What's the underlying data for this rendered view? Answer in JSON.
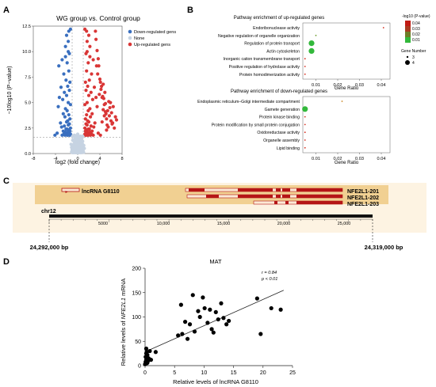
{
  "panels": {
    "A": "A",
    "B": "B",
    "C": "C",
    "D": "D"
  },
  "colors": {
    "down": "#3a6fbf",
    "none": "#c6d3e2",
    "up": "#d93636",
    "gene_bar": "#b11414",
    "high_pval": "#d42e1e",
    "low_pval": "#32b83b",
    "track_bg": "#f6e6c4",
    "band": "#efc98d"
  },
  "volcano": {
    "title": "WG group vs. Control group",
    "xlabel": "log2 (fold change)",
    "ylabel": "−10log10 (P−value)",
    "legend": [
      "Down-regulated gens",
      "None",
      "Up-regulated gens"
    ]
  },
  "enrichment": {
    "up_title": "Pathway enrichment of up-regulated genes",
    "down_title": "Pathway enrichment of down-regulated genes",
    "xlabel": "Gene Ratio",
    "pval_title": "-log10 (P-value)",
    "pval_ticks": [
      "0.04",
      "0.03",
      "0.02",
      "0.01"
    ],
    "size_title": "Gene Number",
    "size_ticks": [
      "3",
      "4"
    ]
  },
  "genome": {
    "lnc_label": "lncRNA G8110",
    "transcripts": [
      "NFE2L1-201",
      "NFE2L1-202",
      "NFE2L1-203"
    ],
    "chrom": "chr12",
    "ticks": [
      "5000",
      "10,000",
      "15,000",
      "20,000",
      "25,000"
    ],
    "start": "24,292,000 bp",
    "end": "24,319,000 bp"
  },
  "chart_data": [
    {
      "type": "scatter",
      "panel": "A",
      "title": "WG group vs. Control group",
      "xlabel": "log2 (fold change)",
      "ylabel": "−10log10 (P−value)",
      "xlim": [
        -8,
        8
      ],
      "ylim": [
        0,
        12.5
      ],
      "xticks": [
        -8,
        -4,
        0,
        4,
        8
      ],
      "yticks": [
        0.0,
        2.5,
        5.0,
        7.5,
        10.0,
        12.5
      ],
      "legend": "top-right",
      "series": [
        {
          "name": "Down-regulated gens",
          "x": [
            -1.3,
            -1.7,
            -2.2,
            -1.5,
            -2.8,
            -3.4,
            -1.9,
            -2.5,
            -1.6,
            -2.1,
            -3.0,
            -1.4,
            -1.8,
            -2.4,
            -2.0,
            -1.5,
            -2.7,
            -3.5,
            -1.7,
            -2.2,
            -1.3,
            -1.9,
            -2.6,
            -1.6,
            -2.3,
            -1.4,
            -1.8,
            -3.1,
            -2.0,
            -1.5,
            -2.4,
            -1.7,
            -2.9,
            -1.3,
            -2.1,
            -1.6,
            -1.9,
            -2.6,
            -1.4,
            -2.2,
            -1.8,
            -3.7,
            -1.5,
            -2.0,
            -1.7,
            -2.5,
            -1.3,
            -1.6,
            -2.3,
            -1.9,
            -4.1,
            -1.4,
            -2.8,
            -1.8,
            -1.5,
            -2.2,
            -1.7,
            -3.3,
            -2.0,
            -1.6
          ],
          "y": [
            12.2,
            11.0,
            10.5,
            9.8,
            9.2,
            8.6,
            8.9,
            7.8,
            8.1,
            7.2,
            6.5,
            7.0,
            6.6,
            6.0,
            5.7,
            6.2,
            5.3,
            4.6,
            5.0,
            4.4,
            4.8,
            4.2,
            3.9,
            3.8,
            3.6,
            3.4,
            3.2,
            3.0,
            3.1,
            2.9,
            2.7,
            2.8,
            2.6,
            2.5,
            2.4,
            2.3,
            2.4,
            2.2,
            2.2,
            2.1,
            2.1,
            2.0,
            2.0,
            2.0,
            1.9,
            1.9,
            1.9,
            1.9,
            1.8,
            1.8,
            1.8,
            1.8,
            1.8,
            1.8,
            1.8,
            9.5,
            10.0,
            5.5,
            11.6,
            12.0
          ]
        },
        {
          "name": "Up-regulated gens",
          "x": [
            1.3,
            1.7,
            2.2,
            1.5,
            2.8,
            3.4,
            1.9,
            2.5,
            1.6,
            2.1,
            3.0,
            1.4,
            1.8,
            2.4,
            2.0,
            1.5,
            2.7,
            3.5,
            1.7,
            2.2,
            1.3,
            1.9,
            2.6,
            1.6,
            2.3,
            1.4,
            1.8,
            3.1,
            2.0,
            1.5,
            2.4,
            1.7,
            2.9,
            1.3,
            2.1,
            1.6,
            1.9,
            2.6,
            1.4,
            2.2,
            1.8,
            3.7,
            1.5,
            2.0,
            1.7,
            2.5,
            1.3,
            1.6,
            2.3,
            1.9,
            4.1,
            1.4,
            2.8,
            1.8,
            1.5,
            2.2,
            1.7,
            3.3,
            2.0,
            1.6,
            4.5,
            5.0,
            5.4,
            4.2,
            4.8,
            5.8,
            3.9,
            4.6,
            5.2,
            4.0,
            5.6,
            6.1,
            4.4,
            3.6,
            4.9,
            5.3,
            6.4,
            3.8,
            4.7,
            5.1,
            6.8,
            4.3,
            5.5,
            3.7,
            6.0,
            4.1,
            5.9,
            7.0,
            4.6,
            5.2,
            3.5,
            6.2,
            4.8,
            5.7,
            3.3,
            6.6,
            4.4,
            5.0,
            3.2,
            6.3
          ],
          "y": [
            12.2,
            11.0,
            10.5,
            9.8,
            9.2,
            8.6,
            8.9,
            7.8,
            8.1,
            7.2,
            6.5,
            7.0,
            6.6,
            6.0,
            5.7,
            6.2,
            5.3,
            4.6,
            5.0,
            4.4,
            4.8,
            4.2,
            3.9,
            3.8,
            3.6,
            3.4,
            3.2,
            3.0,
            3.1,
            2.9,
            2.7,
            2.8,
            2.6,
            2.5,
            2.4,
            2.3,
            2.4,
            2.2,
            2.2,
            2.1,
            2.1,
            2.0,
            2.0,
            2.0,
            1.9,
            1.9,
            1.9,
            1.9,
            1.8,
            1.8,
            1.8,
            1.8,
            1.8,
            1.8,
            1.8,
            9.5,
            10.0,
            5.5,
            11.6,
            12.0,
            5.6,
            4.9,
            4.2,
            6.3,
            3.7,
            4.5,
            5.8,
            6.8,
            3.4,
            7.3,
            5.1,
            4.0,
            3.1,
            7.8,
            6.0,
            2.8,
            4.6,
            8.6,
            5.4,
            3.9,
            3.6,
            6.6,
            2.6,
            9.3,
            3.2,
            7.0,
            5.0,
            3.3,
            4.3,
            2.3,
            10.1,
            2.9,
            4.8,
            3.7,
            11.2,
            2.5,
            5.5,
            4.1,
            12.0,
            3.0
          ]
        },
        {
          "name": "None",
          "x": [
            -1.0,
            -0.8,
            -0.6,
            -0.4,
            -0.2,
            0.0,
            0.2,
            0.4,
            0.6,
            0.8,
            1.0,
            -0.9,
            -0.5,
            -0.1,
            0.3,
            0.7,
            -0.7,
            -0.3,
            0.1,
            0.5,
            0.9,
            -1.1,
            1.1,
            -0.6,
            0.6,
            -0.2,
            0.2,
            -0.8,
            0.8,
            0.0,
            -0.4,
            0.4,
            -1.2,
            1.2,
            -0.9,
            0.9
          ],
          "y": [
            0.4,
            0.8,
            1.2,
            0.6,
            1.6,
            0.3,
            1.1,
            0.5,
            1.4,
            0.9,
            0.2,
            1.7,
            0.7,
            1.3,
            0.5,
            1.0,
            0.2,
            1.5,
            0.9,
            0.3,
            1.2,
            0.6,
            0.8,
            1.8,
            0.4,
            1.0,
            1.6,
            0.1,
            0.7,
            1.9,
            1.1,
            1.4,
            0.9,
            0.5,
            1.3,
            1.7
          ]
        }
      ]
    },
    {
      "type": "scatter",
      "panel": "B-up",
      "title": "Pathway enrichment of up-regulated genes",
      "xlabel": "Gene Ratio",
      "xlim": [
        0.004,
        0.044
      ],
      "xticks": [
        0.01,
        0.02,
        0.03,
        0.04
      ],
      "categories": [
        "Endoribonuclease activity",
        "Negative regulation of organelle organization",
        "Regulation of protein transport",
        "Actin cytoskeleton",
        "Inorganic cation transmembrane transport",
        "Positive regulation of hydrolase activity",
        "Protein homodimerization activity"
      ],
      "gene_ratio": [
        0.041,
        0.01,
        0.008,
        0.008,
        0.005,
        0.005,
        0.005
      ],
      "neg_log10_p": [
        0.04,
        0.02,
        0.01,
        0.01,
        0.04,
        0.04,
        0.04
      ],
      "gene_number": [
        3,
        3,
        4,
        4,
        3,
        3,
        3
      ]
    },
    {
      "type": "scatter",
      "panel": "B-down",
      "title": "Pathway enrichment of down-regulated genes",
      "xlabel": "Gene Ratio",
      "xlim": [
        0.004,
        0.044
      ],
      "xticks": [
        0.01,
        0.02,
        0.03,
        0.04
      ],
      "categories": [
        "Endoplasmic reticulum–Golgi intermediate compartment",
        "Gamete generation",
        "Protein kinase binding",
        "Protein modification by small protein conjugation",
        "Oxidoreductase activity",
        "Organelle assembly",
        "Lipid binding"
      ],
      "gene_ratio": [
        0.022,
        0.005,
        0.005,
        0.005,
        0.005,
        0.005,
        0.005
      ],
      "neg_log10_p": [
        0.03,
        0.01,
        0.04,
        0.04,
        0.04,
        0.04,
        0.04
      ],
      "gene_number": [
        3,
        4,
        3,
        3,
        3,
        3,
        3
      ]
    },
    {
      "type": "scatter",
      "panel": "D",
      "title": "MAT",
      "xlabel": "Relative levels of lncRNA G8110",
      "ylabel": "Relative levels of NFE2L1 mRNA",
      "xlim": [
        0,
        25
      ],
      "ylim": [
        0,
        200
      ],
      "xticks": [
        0,
        5,
        10,
        15,
        20,
        25
      ],
      "yticks": [
        0,
        50,
        100,
        150,
        200
      ],
      "annotation": [
        "r = 0.84",
        "p < 0.01"
      ],
      "x": [
        0.0,
        0.1,
        0.2,
        0.3,
        0.1,
        0.4,
        0.2,
        0.5,
        0.3,
        0.6,
        0.2,
        0.4,
        0.8,
        1.0,
        1.8,
        5.6,
        6.1,
        6.3,
        6.8,
        7.2,
        7.6,
        8.1,
        8.4,
        9.0,
        9.3,
        9.8,
        10.1,
        10.6,
        11.0,
        11.3,
        11.6,
        12.0,
        12.4,
        12.9,
        13.3,
        13.8,
        14.2,
        19.0,
        19.6,
        21.4,
        23.0
      ],
      "y": [
        3,
        8,
        12,
        5,
        18,
        22,
        35,
        10,
        28,
        15,
        25,
        6,
        30,
        12,
        28,
        62,
        125,
        65,
        90,
        55,
        85,
        145,
        70,
        112,
        100,
        140,
        118,
        88,
        115,
        75,
        68,
        110,
        95,
        128,
        98,
        85,
        92,
        138,
        65,
        118,
        115
      ]
    }
  ]
}
